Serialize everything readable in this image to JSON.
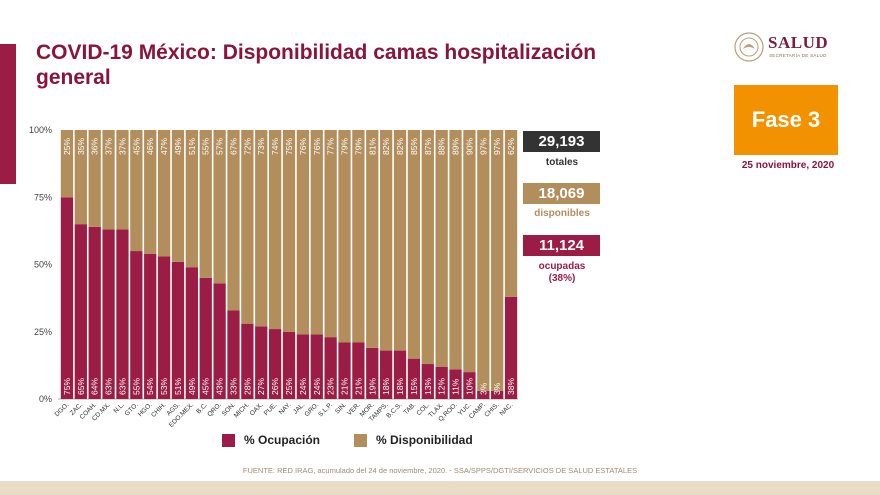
{
  "title": "COVID-19 México: Disponibilidad camas hospitalización general",
  "logo": {
    "name": "SALUD",
    "subtitle": "SECRETARÍA DE SALUD"
  },
  "phase": {
    "label": "Fase 3",
    "date": "25 noviembre, 2020"
  },
  "stats": {
    "total_value": "29,193",
    "total_label": "totales",
    "available_value": "18,069",
    "available_label": "disponibles",
    "occupied_value": "11,124",
    "occupied_label": "ocupadas",
    "occupied_pct": "(38%)"
  },
  "legend": {
    "occupancy": "% Ocupación",
    "availability": "% Disponibilidad"
  },
  "colors": {
    "occupancy": "#9b1d45",
    "availability": "#b38e5d",
    "dark": "#333333",
    "brand": "#8a1538",
    "phase": "#f39200"
  },
  "source": "FUENTE: RED IRAG, acumulado del 24 de noviembre, 2020. - SSA/SPPS/DGTI/SERVICIOS DE SALUD ESTATALES",
  "chart_data": {
    "type": "bar",
    "stacked": true,
    "categories": [
      "DGO.",
      "ZAC.",
      "COAH.",
      "CD.MX.",
      "N.L.",
      "GTO.",
      "HGO.",
      "CHIH.",
      "AGS.",
      "EDO.MEX.",
      "B.C.",
      "QRO.",
      "SON.",
      "MICH.",
      "OAX.",
      "PUE.",
      "NAY.",
      "JAL.",
      "GRO.",
      "S.L.P.",
      "SIN.",
      "VER.",
      "MOR.",
      "TAMPS.",
      "B.C.S.",
      "TAB.",
      "COL.",
      "TLAX.",
      "Q.ROO.",
      "YUC.",
      "CAMP.",
      "CHIS.",
      "NAC."
    ],
    "series": [
      {
        "name": "% Ocupación",
        "values": [
          75,
          65,
          64,
          63,
          63,
          55,
          54,
          53,
          51,
          49,
          45,
          43,
          33,
          28,
          27,
          26,
          25,
          24,
          24,
          23,
          21,
          21,
          19,
          18,
          18,
          15,
          13,
          12,
          11,
          10,
          3,
          3,
          38
        ]
      },
      {
        "name": "% Disponibilidad",
        "values": [
          25,
          35,
          36,
          37,
          37,
          45,
          46,
          47,
          49,
          51,
          55,
          57,
          67,
          72,
          73,
          74,
          75,
          76,
          76,
          77,
          79,
          79,
          81,
          82,
          82,
          85,
          87,
          88,
          89,
          90,
          97,
          97,
          62
        ]
      }
    ],
    "y_ticks": [
      "0%",
      "25%",
      "50%",
      "75%",
      "100%"
    ],
    "ylim": [
      0,
      100
    ]
  }
}
